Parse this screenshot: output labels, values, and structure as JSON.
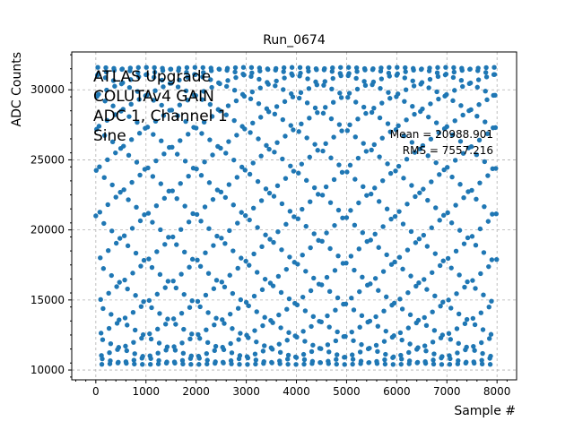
{
  "chart_data": {
    "type": "scatter",
    "title": "Run_0674",
    "xlabel": "Sample #",
    "ylabel": "ADC Counts",
    "xlim": [
      -480,
      8390
    ],
    "ylim": [
      9300,
      32700
    ],
    "xticks": [
      0,
      1000,
      2000,
      3000,
      4000,
      5000,
      6000,
      7000,
      8000
    ],
    "yticks": [
      10000,
      15000,
      20000,
      25000,
      30000
    ],
    "grid": true,
    "marker_color": "#1f77b4",
    "series": [
      {
        "signal": "Sine",
        "n_samples": 8000,
        "x_range": [
          0,
          7999
        ],
        "min": 10400,
        "max": 31600,
        "offset": 21000,
        "amplitude": 10600,
        "period_samples": 161.3
      }
    ],
    "annotations": {
      "info_lines": [
        "ATLAS Upgrade",
        "COLUTAv4 GAIN",
        "ADC 1, Channel 1",
        "Sine"
      ],
      "mean_text": "Mean = 20988.901",
      "rms_text": "RMS = 7557.216"
    }
  }
}
